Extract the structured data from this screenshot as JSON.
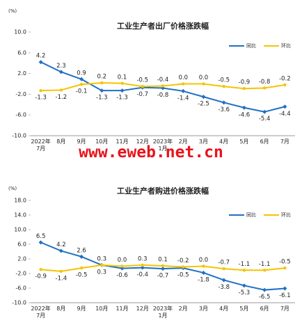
{
  "chart_data": [
    {
      "type": "line",
      "title": "工业生产者出厂价格涨跌幅",
      "y_label": "(%)",
      "categories": [
        "2022年\n7月",
        "8月",
        "9月",
        "10月",
        "11月",
        "12月",
        "2023年\n1月",
        "2月",
        "3月",
        "4月",
        "5月",
        "6月",
        "7月"
      ],
      "series": [
        {
          "name": "同比",
          "color": "#1f6fc5",
          "values": [
            4.2,
            2.3,
            0.9,
            -1.3,
            -1.3,
            -0.7,
            -0.8,
            -1.4,
            -2.5,
            -3.6,
            -4.6,
            -5.4,
            -4.4
          ],
          "value_labels": [
            "4.2",
            "2.3",
            "0.9",
            "-1.3",
            "-1.3",
            "-0.7",
            "-0.8",
            "-1.4",
            "-2.5",
            "-3.6",
            "-4.6",
            "-5.4",
            "-4.4"
          ]
        },
        {
          "name": "环比",
          "color": "#f5c400",
          "values": [
            -1.3,
            -1.2,
            -0.1,
            0.2,
            0.1,
            -0.5,
            -0.4,
            0,
            0,
            -0.5,
            -0.9,
            -0.8,
            -0.2
          ],
          "value_labels": [
            "-1.3",
            "-1.2",
            "-0.1",
            "0.2",
            "0.1",
            "-0.5",
            "-0.4",
            "0.0",
            "0.0",
            "-0.5",
            "-0.9",
            "-0.8",
            "-0.2"
          ]
        }
      ],
      "ylim": [
        -10,
        10
      ],
      "yticks": [
        {
          "value": 10,
          "label": "10.0"
        },
        {
          "value": 6,
          "label": "6.0"
        },
        {
          "value": 2,
          "label": "2.0"
        },
        {
          "value": -2,
          "label": "-2.0"
        },
        {
          "value": -6,
          "label": "-6.0"
        },
        {
          "value": -10,
          "label": "-10.0"
        }
      ],
      "grid": false,
      "legend": "top-right"
    },
    {
      "type": "line",
      "title": "工业生产者购进价格涨跌幅",
      "y_label": "(%)",
      "categories": [
        "2022年\n7月",
        "8月",
        "9月",
        "10月",
        "11月",
        "12月",
        "2023年\n1月",
        "2月",
        "3月",
        "4月",
        "5月",
        "6月",
        "7月"
      ],
      "series": [
        {
          "name": "同比",
          "color": "#1f6fc5",
          "values": [
            6.5,
            4.2,
            2.6,
            0.3,
            -0.6,
            -0.4,
            -0.7,
            -0.5,
            -1.8,
            -3.8,
            -5.3,
            -6.5,
            -6.1
          ],
          "value_labels": [
            "6.5",
            "4.2",
            "2.6",
            "0.3",
            "-0.6",
            "-0.4",
            "-0.7",
            "-0.5",
            "-1.8",
            "-3.8",
            "-5.3",
            "-6.5",
            "-6.1"
          ]
        },
        {
          "name": "环比",
          "color": "#f5c400",
          "values": [
            -0.9,
            -1.4,
            -0.5,
            0.3,
            0,
            0.3,
            0.1,
            -0.2,
            0,
            -0.7,
            -1.1,
            -1.1,
            -0.5
          ],
          "value_labels": [
            "-0.9",
            "-1.4",
            "-0.5",
            "0.3",
            "0.0",
            "0.3",
            "0.1",
            "-0.2",
            "0.0",
            "-0.7",
            "-1.1",
            "-1.1",
            "-0.5"
          ]
        }
      ],
      "ylim": [
        -10,
        18
      ],
      "yticks": [
        {
          "value": 18,
          "label": "18.0"
        },
        {
          "value": 14,
          "label": "14.0"
        },
        {
          "value": 10,
          "label": "10.0"
        },
        {
          "value": 6,
          "label": "6.0"
        },
        {
          "value": 2,
          "label": "2.0"
        },
        {
          "value": -2,
          "label": "-2.0"
        },
        {
          "value": -6,
          "label": "-6.0"
        },
        {
          "value": -10,
          "label": "-10.0"
        }
      ],
      "grid": false,
      "legend": "top-right"
    }
  ],
  "watermark": "www.eweb.net.cn"
}
